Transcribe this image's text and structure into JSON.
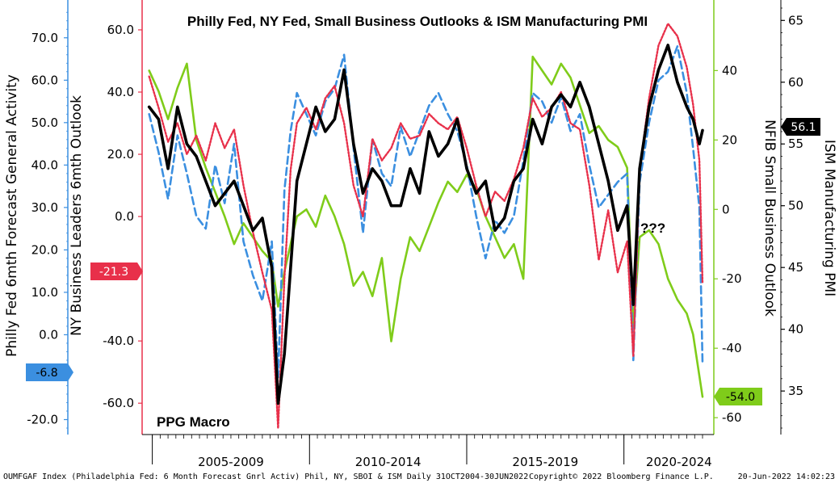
{
  "chart_data": {
    "type": "line",
    "title": "Philly Fed, NY Fed, Small Business Outlooks & ISM Manufacturing PMI",
    "watermark": "PPG Macro",
    "annotation": "???",
    "x_period_labels": [
      "2005-2009",
      "2010-2014",
      "2015-2019",
      "2020-2024"
    ],
    "x_range": [
      "2004-10-31",
      "2022-06-30"
    ],
    "axes": {
      "philly": {
        "label": "Philly Fed 6mth Forecast General Activity",
        "ticks": [
          "70.0",
          "60.0",
          "50.0",
          "40.0",
          "30.0",
          "20.0",
          "10.0",
          "0.0",
          "-10.0",
          "-20.0"
        ],
        "range": [
          -22.0,
          77.0
        ],
        "color": "#3b8fe0"
      },
      "ny": {
        "label": "NY Business Leaders 6mth Outlook",
        "ticks": [
          "60.0",
          "40.0",
          "20.0",
          "0.0",
          "-40.0",
          "-60.0"
        ],
        "range": [
          -68,
          67
        ],
        "color": "#e8304a"
      },
      "nfib": {
        "label": "NFIB Small Business Outlook",
        "ticks": [
          "40",
          "20",
          "0",
          "-20",
          "-40",
          "-60"
        ],
        "range": [
          -63,
          58
        ],
        "color": "#7fcc1a"
      },
      "ism": {
        "label": "ISM Manufacturing PMI",
        "ticks": [
          "65",
          "60",
          "55",
          "50",
          "45",
          "40",
          "35"
        ],
        "range": [
          32,
          66
        ],
        "color": "#000000"
      }
    },
    "last_values": {
      "philly": "-6.8",
      "ny": "-21.3",
      "nfib": "-54.0",
      "ism": "56.1"
    },
    "series": [
      {
        "name": "Philly Fed 6mth Forecast General Activity",
        "axis": "philly",
        "style": "dashed",
        "color": "#3b8fe0",
        "x": [
          2004.9,
          2005.2,
          2005.5,
          2005.8,
          2006.1,
          2006.4,
          2006.7,
          2007.0,
          2007.3,
          2007.6,
          2007.9,
          2008.2,
          2008.5,
          2008.8,
          2009.0,
          2009.2,
          2009.4,
          2009.6,
          2009.9,
          2010.2,
          2010.5,
          2010.8,
          2011.1,
          2011.4,
          2011.7,
          2012.0,
          2012.3,
          2012.6,
          2012.9,
          2013.2,
          2013.5,
          2013.8,
          2014.1,
          2014.4,
          2014.7,
          2015.0,
          2015.3,
          2015.6,
          2015.9,
          2016.2,
          2016.5,
          2016.8,
          2017.1,
          2017.4,
          2017.7,
          2018.0,
          2018.3,
          2018.6,
          2018.9,
          2019.2,
          2019.5,
          2019.8,
          2020.1,
          2020.3,
          2020.5,
          2020.8,
          2021.1,
          2021.4,
          2021.7,
          2022.0,
          2022.2,
          2022.4,
          2022.5
        ],
        "values": [
          52,
          43,
          32,
          47,
          38,
          28,
          25,
          40,
          31,
          45,
          22,
          14,
          8,
          22,
          -10,
          34,
          48,
          57,
          52,
          47,
          55,
          58,
          66,
          44,
          24,
          46,
          38,
          35,
          49,
          42,
          48,
          54,
          57,
          52,
          48,
          40,
          28,
          18,
          27,
          24,
          28,
          41,
          57,
          55,
          50,
          56,
          48,
          52,
          40,
          30,
          33,
          36,
          38,
          -6,
          36,
          50,
          60,
          62,
          68,
          57,
          44,
          30,
          -6.8
        ]
      },
      {
        "name": "NY Business Leaders 6mth Outlook",
        "axis": "ny",
        "style": "dotted",
        "color": "#e8304a",
        "x": [
          2004.9,
          2005.2,
          2005.5,
          2005.8,
          2006.1,
          2006.4,
          2006.7,
          2007.0,
          2007.3,
          2007.6,
          2007.9,
          2008.2,
          2008.5,
          2008.8,
          2009.0,
          2009.2,
          2009.4,
          2009.6,
          2009.9,
          2010.2,
          2010.5,
          2010.8,
          2011.1,
          2011.4,
          2011.7,
          2012.0,
          2012.3,
          2012.6,
          2012.9,
          2013.2,
          2013.5,
          2013.8,
          2014.1,
          2014.4,
          2014.7,
          2015.0,
          2015.3,
          2015.6,
          2015.9,
          2016.2,
          2016.5,
          2016.8,
          2017.1,
          2017.4,
          2017.7,
          2018.0,
          2018.3,
          2018.6,
          2018.9,
          2019.2,
          2019.5,
          2019.8,
          2020.1,
          2020.3,
          2020.5,
          2020.8,
          2021.1,
          2021.4,
          2021.7,
          2022.0,
          2022.2,
          2022.4,
          2022.5
        ],
        "values": [
          45,
          35,
          24,
          30,
          20,
          26,
          18,
          30,
          22,
          28,
          10,
          -5,
          -18,
          -30,
          -68,
          -20,
          15,
          30,
          35,
          28,
          38,
          42,
          30,
          10,
          0,
          25,
          18,
          22,
          30,
          25,
          26,
          33,
          30,
          28,
          32,
          22,
          10,
          0,
          8,
          5,
          12,
          22,
          38,
          32,
          35,
          40,
          30,
          28,
          10,
          -14,
          2,
          -18,
          -8,
          -45,
          15,
          38,
          55,
          62,
          58,
          48,
          36,
          18,
          -21.3
        ]
      },
      {
        "name": "NFIB Small Business Outlook",
        "axis": "nfib",
        "style": "solid",
        "color": "#7fcc1a",
        "x": [
          2004.9,
          2005.2,
          2005.5,
          2005.8,
          2006.1,
          2006.4,
          2006.7,
          2007.0,
          2007.3,
          2007.6,
          2007.9,
          2008.2,
          2008.5,
          2008.8,
          2009.0,
          2009.2,
          2009.4,
          2009.6,
          2009.9,
          2010.2,
          2010.5,
          2010.8,
          2011.1,
          2011.4,
          2011.7,
          2012.0,
          2012.3,
          2012.6,
          2012.9,
          2013.2,
          2013.5,
          2013.8,
          2014.1,
          2014.4,
          2014.7,
          2015.0,
          2015.3,
          2015.6,
          2015.9,
          2016.2,
          2016.5,
          2016.8,
          2017.1,
          2017.4,
          2017.7,
          2018.0,
          2018.3,
          2018.6,
          2018.9,
          2019.2,
          2019.5,
          2019.8,
          2020.1,
          2020.3,
          2020.5,
          2020.8,
          2021.1,
          2021.4,
          2021.7,
          2022.0,
          2022.2,
          2022.4,
          2022.5
        ],
        "values": [
          40,
          34,
          26,
          35,
          42,
          20,
          12,
          5,
          -2,
          -10,
          -4,
          -8,
          -12,
          -15,
          -28,
          -18,
          -10,
          -2,
          0,
          -5,
          4,
          -2,
          -10,
          -22,
          -18,
          -25,
          -14,
          -38,
          -20,
          -8,
          -12,
          -5,
          2,
          8,
          5,
          10,
          6,
          -2,
          -8,
          -14,
          -10,
          -20,
          44,
          40,
          36,
          42,
          38,
          30,
          22,
          24,
          20,
          18,
          12,
          -34,
          -8,
          -6,
          -10,
          -20,
          -26,
          -30,
          -36,
          -48,
          -54.0
        ]
      },
      {
        "name": "ISM Manufacturing PMI",
        "axis": "ism",
        "style": "solid-thick",
        "color": "#000000",
        "x": [
          2004.9,
          2005.2,
          2005.5,
          2005.8,
          2006.1,
          2006.4,
          2006.7,
          2007.0,
          2007.3,
          2007.6,
          2007.9,
          2008.2,
          2008.5,
          2008.8,
          2009.0,
          2009.2,
          2009.4,
          2009.6,
          2009.9,
          2010.2,
          2010.5,
          2010.8,
          2011.1,
          2011.4,
          2011.7,
          2012.0,
          2012.3,
          2012.6,
          2012.9,
          2013.2,
          2013.5,
          2013.8,
          2014.1,
          2014.4,
          2014.7,
          2015.0,
          2015.3,
          2015.6,
          2015.9,
          2016.2,
          2016.5,
          2016.8,
          2017.1,
          2017.4,
          2017.7,
          2018.0,
          2018.3,
          2018.6,
          2018.9,
          2019.2,
          2019.5,
          2019.8,
          2020.1,
          2020.3,
          2020.5,
          2020.8,
          2021.1,
          2021.4,
          2021.7,
          2022.0,
          2022.2,
          2022.4,
          2022.5
        ],
        "values": [
          58,
          57,
          53,
          58,
          55,
          54,
          52,
          50,
          51,
          52,
          50,
          48,
          49,
          45,
          34,
          38,
          45,
          52,
          55,
          58,
          56,
          57,
          61,
          55,
          51,
          53,
          52,
          50,
          50,
          53,
          51,
          56,
          54,
          55,
          57,
          53,
          51,
          52,
          48,
          49,
          52,
          53,
          57,
          55,
          58,
          59,
          58,
          60,
          58,
          55,
          52,
          48,
          50,
          42,
          53,
          58,
          61,
          63,
          60,
          58,
          57,
          55,
          56.1
        ]
      }
    ]
  },
  "footer": {
    "source": "OUMFGAF Index (Philadelphia Fed: 6 Month Forecast Gnrl Activ) Phil, NY, SBOI & ISM  Daily 31OCT2004-30JUN2022",
    "copyright": "Copyright© 2022 Bloomberg Finance L.P.",
    "timestamp": "20-Jun-2022 14:02:23"
  }
}
